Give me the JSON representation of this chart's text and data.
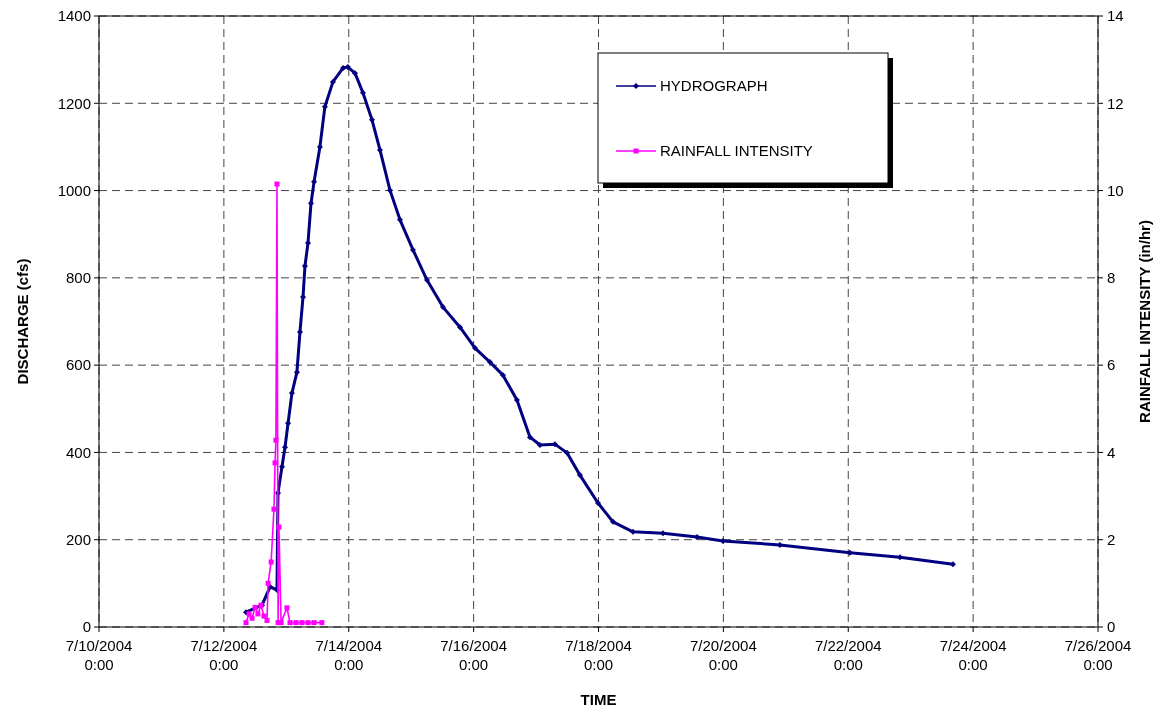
{
  "chart_data": {
    "type": "line",
    "xlabel": "TIME",
    "ylabel": "DISCHARGE (cfs)",
    "y2label": "RAINFALL INTENSITY (in/hr)",
    "xlim": [
      "2004-07-10T00:00",
      "2004-07-26T00:00"
    ],
    "xticks": [
      {
        "value": "2004-07-10T00:00",
        "label": "7/10/2004 0:00"
      },
      {
        "value": "2004-07-12T00:00",
        "label": "7/12/2004 0:00"
      },
      {
        "value": "2004-07-14T00:00",
        "label": "7/14/2004 0:00"
      },
      {
        "value": "2004-07-16T00:00",
        "label": "7/16/2004 0:00"
      },
      {
        "value": "2004-07-18T00:00",
        "label": "7/18/2004 0:00"
      },
      {
        "value": "2004-07-20T00:00",
        "label": "7/20/2004 0:00"
      },
      {
        "value": "2004-07-22T00:00",
        "label": "7/22/2004 0:00"
      },
      {
        "value": "2004-07-24T00:00",
        "label": "7/24/2004 0:00"
      },
      {
        "value": "2004-07-26T00:00",
        "label": "7/26/2004 0:00"
      }
    ],
    "ylim": [
      0,
      1400
    ],
    "yticks": [
      0,
      200,
      400,
      600,
      800,
      1000,
      1200,
      1400
    ],
    "y2lim": [
      0,
      14
    ],
    "y2ticks": [
      0,
      2,
      4,
      6,
      8,
      10,
      12,
      14
    ],
    "grid": true,
    "legend": "top right",
    "line_style": "solid",
    "series": [
      {
        "name": "HYDROGRAPH",
        "color": "#000080",
        "marker": "diamond",
        "x": [
          "2004-07-12T08:30",
          "2004-07-12T14:40",
          "2004-07-12T17:45",
          "2004-07-12T20:25",
          "2004-07-12T20:48",
          "2004-07-12T22:20",
          "2004-07-12T23:30",
          "2004-07-13T00:40",
          "2004-07-13T02:10",
          "2004-07-13T04:05",
          "2004-07-13T05:15",
          "2004-07-13T06:25",
          "2004-07-13T07:10",
          "2004-07-13T08:20",
          "2004-07-13T09:30",
          "2004-07-13T10:40",
          "2004-07-13T12:55",
          "2004-07-13T14:50",
          "2004-07-13T17:55",
          "2004-07-13T21:50",
          "2004-07-13T23:40",
          "2004-07-14T02:24",
          "2004-07-14T05:28",
          "2004-07-14T08:56",
          "2004-07-14T12:00",
          "2004-07-14T15:50",
          "2004-07-14T19:42",
          "2004-07-15T00:42",
          "2004-07-15T06:05",
          "2004-07-15T12:13",
          "2004-07-15T18:46",
          "2004-07-16T00:32",
          "2004-07-16T06:17",
          "2004-07-16T11:17",
          "2004-07-16T16:39",
          "2004-07-16T21:40",
          "2004-07-17T01:30",
          "2004-07-17T07:16",
          "2004-07-17T11:53",
          "2004-07-17T16:52",
          "2004-07-17T23:48",
          "2004-07-18T05:34",
          "2004-07-18T13:15",
          "2004-07-19T00:47",
          "2004-07-19T13:51",
          "2004-07-19T23:51",
          "2004-07-20T21:45",
          "2004-07-22T00:39",
          "2004-07-22T19:53",
          "2004-07-23T16:15"
        ],
        "values": [
          34,
          50,
          92,
          85,
          307,
          367,
          412,
          467,
          536,
          584,
          676,
          756,
          827,
          880,
          971,
          1020,
          1100,
          1192,
          1249,
          1281,
          1283,
          1269,
          1224,
          1162,
          1093,
          1001,
          933,
          864,
          795,
          733,
          687,
          639,
          607,
          577,
          520,
          435,
          417,
          419,
          399,
          348,
          284,
          241,
          218,
          215,
          206,
          197,
          188,
          170,
          160,
          144
        ]
      },
      {
        "name": "RAINFALL INTENSITY",
        "color": "#ff00ff",
        "marker": "square",
        "axis": "y2",
        "x": [
          "2004-07-12T08:30",
          "2004-07-12T09:40",
          "2004-07-12T10:50",
          "2004-07-12T12:00",
          "2004-07-12T13:05",
          "2004-07-12T14:15",
          "2004-07-12T15:25",
          "2004-07-12T16:35",
          "2004-07-12T17:00",
          "2004-07-12T18:10",
          "2004-07-12T19:15",
          "2004-07-12T19:40",
          "2004-07-12T20:00",
          "2004-07-12T20:25",
          "2004-07-12T20:50",
          "2004-07-12T21:10",
          "2004-07-12T22:00",
          "2004-07-13T00:15",
          "2004-07-13T01:25",
          "2004-07-13T03:45",
          "2004-07-13T06:00",
          "2004-07-13T08:20",
          "2004-07-13T10:40",
          "2004-07-13T13:40"
        ],
        "values": [
          0.1,
          0.3,
          0.2,
          0.45,
          0.3,
          0.5,
          0.25,
          0.15,
          1.0,
          1.49,
          2.7,
          3.76,
          4.28,
          10.15,
          0.1,
          2.29,
          0.1,
          0.44,
          0.1,
          0.1,
          0.1,
          0.1,
          0.1,
          0.1
        ]
      }
    ]
  }
}
